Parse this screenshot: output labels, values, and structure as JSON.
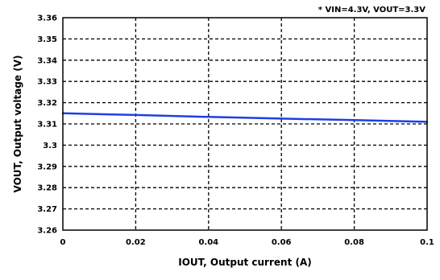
{
  "chart_data": {
    "type": "line",
    "title": "",
    "annotation": "* VIN=4.3V, VOUT=3.3V",
    "xlabel": "IOUT, Output current (A)",
    "ylabel": "VOUT, Output voltage (V)",
    "xlim": [
      0,
      0.1
    ],
    "ylim": [
      3.26,
      3.36
    ],
    "x_ticks": [
      0,
      0.02,
      0.04,
      0.06,
      0.08,
      0.1
    ],
    "x_tick_labels": [
      "0",
      "0.02",
      "0.04",
      "0.06",
      "0.08",
      "0.1"
    ],
    "y_ticks": [
      3.26,
      3.27,
      3.28,
      3.29,
      3.3,
      3.31,
      3.32,
      3.33,
      3.34,
      3.35,
      3.36
    ],
    "y_tick_labels": [
      "3.26",
      "3.27",
      "3.28",
      "3.29",
      "3.3",
      "3.31",
      "3.32",
      "3.33",
      "3.34",
      "3.35",
      "3.36"
    ],
    "grid": true,
    "grid_style": "dashed",
    "series": [
      {
        "color": "#1f3fe6",
        "x": [
          0,
          0.02,
          0.04,
          0.06,
          0.08,
          0.1
        ],
        "y": [
          3.315,
          3.3142,
          3.3133,
          3.3125,
          3.3118,
          3.311
        ]
      }
    ]
  }
}
